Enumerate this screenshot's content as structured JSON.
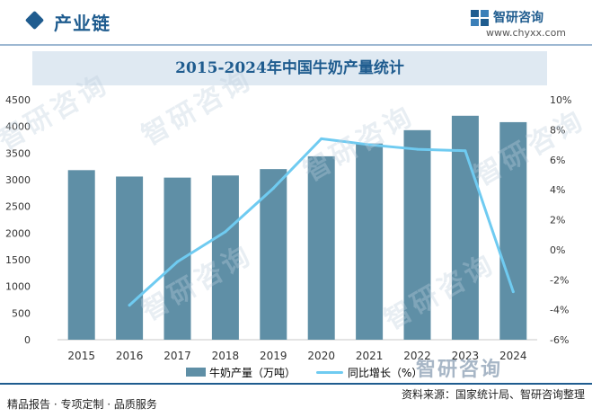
{
  "header": {
    "title": "产业链",
    "brand_name": "智研咨询",
    "brand_url": "www.chyxx.com"
  },
  "chart_title": "2015-2024年中国牛奶产量统计",
  "legend": {
    "bar_label": "牛奶产量（万吨）",
    "line_label": "同比增长（%）"
  },
  "footer": {
    "left_text": "精品报告 · 专项定制 · 品质服务",
    "right_text": "资料来源：国家统计局、智研咨询整理",
    "brand": "智研咨询"
  },
  "watermarks": [
    "智研咨询",
    "智研咨询",
    "智研咨询",
    "智研咨询",
    "智研咨询",
    "智研咨询"
  ],
  "colors": {
    "accent": "#1f5c8f",
    "header_line": "#9db8d2",
    "title_band": "#dfe9f2",
    "bar": "#5f8fa6",
    "line": "#6fcbf1",
    "axis_text": "#333333",
    "footer_rule": "#1f5c8f"
  },
  "chart_data": {
    "type": "bar+line",
    "categories": [
      "2015",
      "2016",
      "2017",
      "2018",
      "2019",
      "2020",
      "2021",
      "2022",
      "2023",
      "2024"
    ],
    "series": [
      {
        "name": "牛奶产量（万吨）",
        "type": "bar",
        "axis": "left",
        "values": [
          3180,
          3060,
          3040,
          3080,
          3200,
          3440,
          3680,
          3930,
          4200,
          4080
        ]
      },
      {
        "name": "同比增长（%）",
        "type": "line",
        "axis": "right",
        "values": [
          null,
          -3.7,
          -0.8,
          1.2,
          4.1,
          7.4,
          7.0,
          6.7,
          6.6,
          -2.8
        ]
      }
    ],
    "y_left": {
      "min": 0,
      "max": 4500,
      "step": 500,
      "ticks": [
        "0",
        "500",
        "1000",
        "1500",
        "2000",
        "2500",
        "3000",
        "3500",
        "4000",
        "4500"
      ]
    },
    "y_right": {
      "min": -6,
      "max": 10,
      "step": 2,
      "ticks": [
        "-6%",
        "-4%",
        "-2%",
        "0%",
        "2%",
        "4%",
        "6%",
        "8%",
        "10%"
      ]
    },
    "grid": false,
    "legend_position": "bottom"
  }
}
